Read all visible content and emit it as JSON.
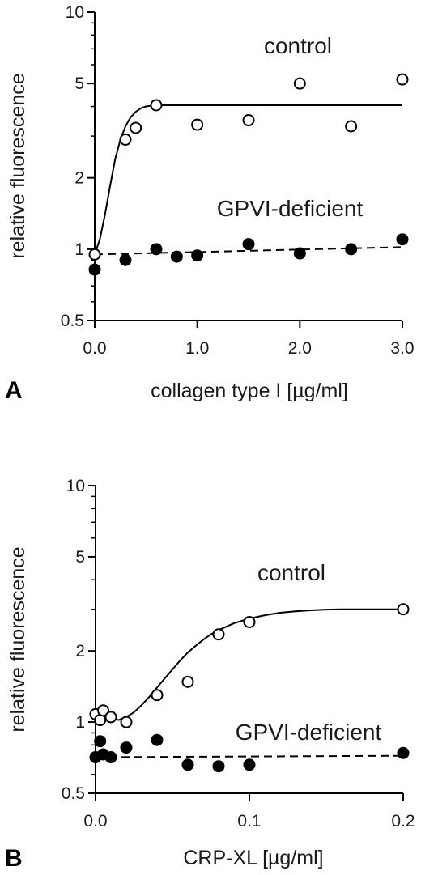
{
  "chart_data": [
    {
      "type": "scatter",
      "panel": "A",
      "xlabel": "collagen type I [µg/ml]",
      "ylabel": "relative fluorescence",
      "xlim": [
        0,
        3.0
      ],
      "ylim": [
        0.5,
        10
      ],
      "yscale": "log",
      "x_ticks": [
        0,
        1,
        2,
        3
      ],
      "x_tick_labels": [
        "0.0",
        "1.0",
        "2.0",
        "3.0"
      ],
      "y_ticks": [
        0.5,
        1,
        2,
        5,
        10
      ],
      "y_tick_labels": [
        "0.5",
        "1",
        "2",
        "5",
        "10"
      ],
      "grid": false,
      "series": [
        {
          "name": "control",
          "marker": "open-circle",
          "x": [
            0,
            0.3,
            0.4,
            0.6,
            1.0,
            1.5,
            2.0,
            2.5,
            3.0
          ],
          "y": [
            0.95,
            2.9,
            3.25,
            4.05,
            3.35,
            3.5,
            5.0,
            3.3,
            5.2
          ],
          "fit": {
            "style": "solid",
            "x": [
              0,
              0.05,
              0.1,
              0.15,
              0.2,
              0.25,
              0.3,
              0.35,
              0.4,
              0.45,
              0.5,
              0.55,
              0.6,
              0.8,
              1.0,
              1.5,
              2.0,
              2.5,
              3.0
            ],
            "y": [
              0.95,
              1.1,
              1.4,
              1.85,
              2.4,
              2.9,
              3.3,
              3.6,
              3.8,
              3.93,
              4.0,
              4.03,
              4.05,
              4.05,
              4.05,
              4.05,
              4.05,
              4.05,
              4.05
            ]
          }
        },
        {
          "name": "GPVI-deficient",
          "marker": "filled-circle",
          "x": [
            0,
            0.3,
            0.6,
            0.8,
            1.0,
            1.5,
            2.0,
            2.5,
            3.0
          ],
          "y": [
            0.82,
            0.9,
            1.0,
            0.93,
            0.94,
            1.05,
            0.96,
            1.0,
            1.1
          ],
          "fit": {
            "style": "dashed",
            "x": [
              0,
              3.0
            ],
            "y": [
              0.95,
              1.02
            ]
          }
        }
      ]
    },
    {
      "type": "scatter",
      "panel": "B",
      "xlabel": "CRP-XL [µg/ml]",
      "ylabel": "relative fluorescence",
      "xlim": [
        0,
        0.2
      ],
      "ylim": [
        0.5,
        10
      ],
      "yscale": "log",
      "x_ticks": [
        0,
        0.1,
        0.2
      ],
      "x_tick_labels": [
        "0.0",
        "0.1",
        "0.2"
      ],
      "y_ticks": [
        0.5,
        1,
        2,
        5,
        10
      ],
      "y_tick_labels": [
        "0.5",
        "1",
        "2",
        "5",
        "10"
      ],
      "grid": false,
      "series": [
        {
          "name": "control",
          "marker": "open-circle",
          "x": [
            0,
            0.003,
            0.005,
            0.01,
            0.02,
            0.04,
            0.06,
            0.08,
            0.1,
            0.2
          ],
          "y": [
            1.08,
            1.02,
            1.12,
            1.05,
            1.0,
            1.3,
            1.48,
            2.35,
            2.65,
            3.0
          ],
          "fit": {
            "style": "solid",
            "x": [
              0,
              0.005,
              0.01,
              0.015,
              0.02,
              0.025,
              0.03,
              0.035,
              0.04,
              0.045,
              0.05,
              0.055,
              0.06,
              0.065,
              0.07,
              0.075,
              0.08,
              0.09,
              0.1,
              0.11,
              0.12,
              0.13,
              0.14,
              0.15,
              0.16,
              0.18,
              0.2
            ],
            "y": [
              1.1,
              1.07,
              1.04,
              1.02,
              1.05,
              1.1,
              1.18,
              1.28,
              1.4,
              1.53,
              1.67,
              1.82,
              1.97,
              2.1,
              2.23,
              2.35,
              2.45,
              2.62,
              2.74,
              2.83,
              2.9,
              2.94,
              2.97,
              2.99,
              3.0,
              3.0,
              3.0
            ]
          }
        },
        {
          "name": "GPVI-deficient",
          "marker": "filled-circle",
          "x": [
            0,
            0.003,
            0.005,
            0.01,
            0.02,
            0.04,
            0.06,
            0.08,
            0.1,
            0.2
          ],
          "y": [
            0.71,
            0.83,
            0.73,
            0.71,
            0.78,
            0.84,
            0.66,
            0.65,
            0.66,
            0.74
          ],
          "fit": {
            "style": "dashed",
            "x": [
              0,
              0.2
            ],
            "y": [
              0.71,
              0.72
            ]
          }
        }
      ]
    }
  ]
}
